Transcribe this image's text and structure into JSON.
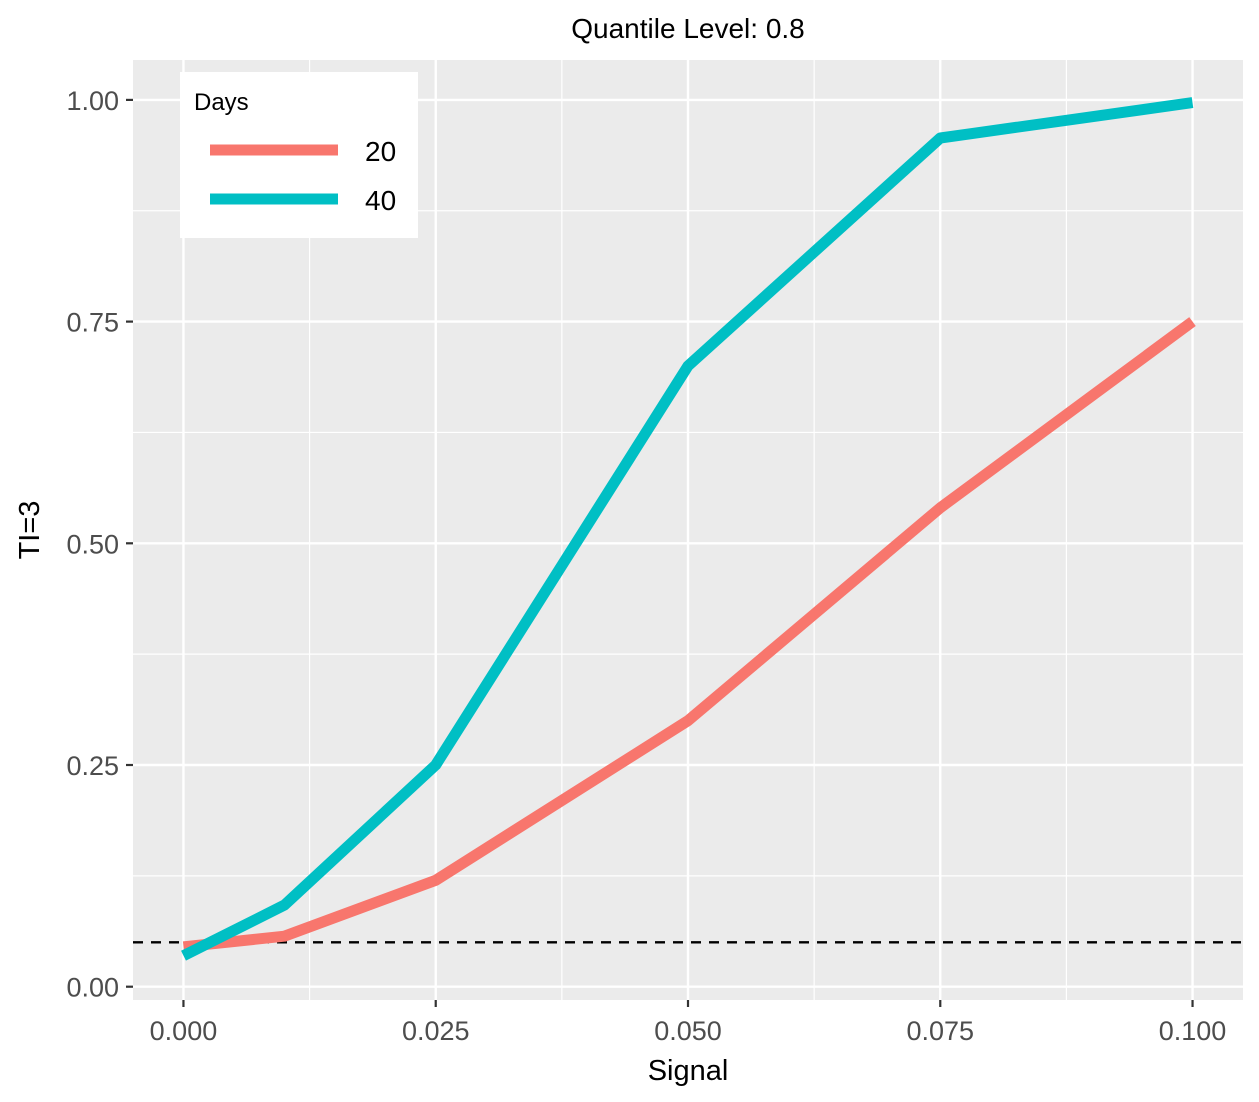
{
  "chart_data": {
    "type": "line",
    "title": "Quantile Level: 0.8",
    "xlabel": "Signal",
    "ylabel": "TI=3",
    "x": [
      0.0,
      0.01,
      0.025,
      0.05,
      0.075,
      0.1
    ],
    "xticks": [
      "0.000",
      "0.025",
      "0.050",
      "0.075",
      "0.100"
    ],
    "yticks": [
      "0.00",
      "0.25",
      "0.50",
      "0.75",
      "1.00"
    ],
    "xlim": [
      -0.005,
      0.105
    ],
    "ylim": [
      -0.015,
      1.045
    ],
    "legend": {
      "title": "Days",
      "position": "top-left"
    },
    "reference_line": {
      "y": 0.05,
      "style": "dashed",
      "color": "#000000"
    },
    "grid": true,
    "series": [
      {
        "name": "20",
        "color": "#F8766D",
        "values": [
          0.045,
          0.057,
          0.12,
          0.3,
          0.54,
          0.75
        ]
      },
      {
        "name": "40",
        "color": "#00BFC4",
        "values": [
          0.035,
          0.092,
          0.25,
          0.7,
          0.957,
          0.997
        ]
      }
    ]
  }
}
